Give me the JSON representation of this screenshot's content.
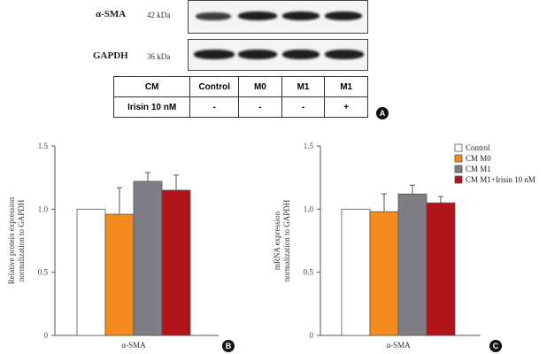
{
  "blot": {
    "rows": [
      {
        "protein": "α-SMA",
        "kda": "42 kDa"
      },
      {
        "protein": "GAPDH",
        "kda": "36 kDa"
      }
    ],
    "table": {
      "header": [
        "CM",
        "Control",
        "M0",
        "M1",
        "M1"
      ],
      "row2": [
        "Irisin 10 nM",
        "-",
        "-",
        "-",
        "+"
      ]
    },
    "panel_letter": "A"
  },
  "colors": {
    "control": "#ffffff",
    "cm_m0": "#f38b1f",
    "cm_m1": "#7e7e84",
    "cm_m1_irisin": "#b2141b"
  },
  "chart_data": [
    {
      "type": "bar",
      "panel_letter": "B",
      "categories": [
        "α-SMA"
      ],
      "ylabel": "Relative protein expression normalization to GAPDH",
      "ylabel_lines": [
        "Relative protein expression",
        "normalization to GAPDH"
      ],
      "xlabel": "α-SMA",
      "ylim": [
        0,
        1.5
      ],
      "yticks": [
        "0",
        "0.5",
        "1.0",
        "1.5"
      ],
      "series": [
        {
          "name": "Control",
          "values": [
            1.0
          ],
          "error": [
            0
          ]
        },
        {
          "name": "CM M0",
          "values": [
            0.96
          ],
          "error": [
            0.21
          ]
        },
        {
          "name": "CM M1",
          "values": [
            1.22
          ],
          "error": [
            0.07
          ]
        },
        {
          "name": "CM M1+Irisin 10 nM",
          "values": [
            1.15
          ],
          "error": [
            0.12
          ]
        }
      ]
    },
    {
      "type": "bar",
      "panel_letter": "C",
      "categories": [
        "α-SMA"
      ],
      "ylabel": "mRNA expression normalization to GAPDH",
      "ylabel_lines": [
        "mRNA expression",
        "normalization to GAPDH"
      ],
      "xlabel": "α-SMA",
      "ylim": [
        0,
        1.5
      ],
      "yticks": [
        "0",
        "0.5",
        "1.0",
        "1.5"
      ],
      "legend_position": "top-right",
      "series": [
        {
          "name": "Control",
          "values": [
            1.0
          ],
          "error": [
            0
          ]
        },
        {
          "name": "CM M0",
          "values": [
            0.98
          ],
          "error": [
            0.14
          ]
        },
        {
          "name": "CM M1",
          "values": [
            1.12
          ],
          "error": [
            0.07
          ]
        },
        {
          "name": "CM M1+Irisin 10 nM",
          "values": [
            1.05
          ],
          "error": [
            0.05
          ]
        }
      ]
    }
  ]
}
